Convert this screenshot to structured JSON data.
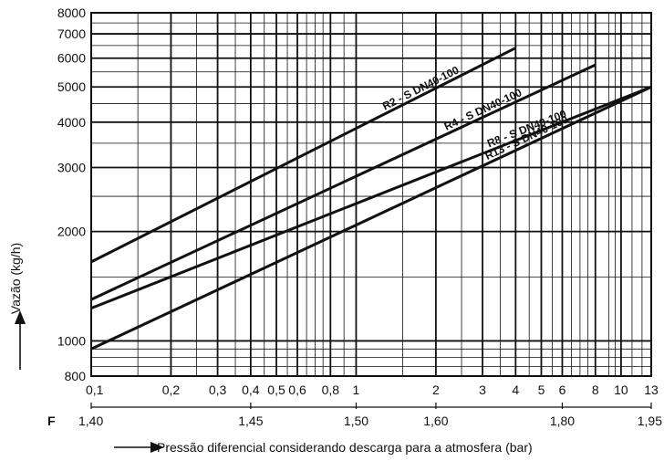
{
  "chart_data": {
    "type": "line",
    "x_scale": "log",
    "y_scale": "log",
    "xlim": [
      0.1,
      13
    ],
    "ylim": [
      800,
      8000
    ],
    "xlabel": "Pressão diferencial considerando descarga para a atmosfera (bar)",
    "ylabel": "Vazão (kg/h)",
    "grid": true,
    "x_major_ticks": [
      0.1,
      0.2,
      0.3,
      0.4,
      0.5,
      0.6,
      0.8,
      1,
      2,
      3,
      4,
      5,
      6,
      8,
      10,
      13
    ],
    "x_tick_labels": [
      "0,1",
      "0,2",
      "0,3",
      "0,4",
      "0,5",
      "0,6",
      "0,8",
      "1",
      "2",
      "3",
      "4",
      "5",
      "6",
      "8",
      "10",
      "13"
    ],
    "x_minor_grid": [
      0.15,
      0.25,
      0.35,
      0.45,
      0.55,
      0.65,
      0.7,
      0.75,
      0.9,
      1.5,
      2.5,
      3.5,
      4.5,
      5.5,
      6.5,
      7,
      7.5,
      9,
      9.5,
      11,
      12
    ],
    "y_major_ticks": [
      800,
      1000,
      2000,
      3000,
      4000,
      5000,
      6000,
      7000,
      8000
    ],
    "y_tick_labels": [
      "800",
      "1000",
      "2000",
      "3000",
      "4000",
      "5000",
      "6000",
      "7000",
      "8000"
    ],
    "y_minor_grid": [
      850,
      900,
      950,
      1500,
      2500,
      3500,
      4500,
      5500,
      6500,
      7500
    ],
    "f_axis": {
      "label": "F",
      "positions": [
        0.1,
        0.4,
        1,
        2,
        6,
        13
      ],
      "labels": [
        "1,40",
        "1,45",
        "1,50",
        "1,60",
        "1,80",
        "1,95"
      ]
    },
    "series": [
      {
        "name": "R2 - S DN40-100",
        "x": [
          0.1,
          4.0
        ],
        "y": [
          1650,
          6400
        ]
      },
      {
        "name": "R4 - S DN40-100",
        "x": [
          0.1,
          8.0
        ],
        "y": [
          1300,
          5750
        ]
      },
      {
        "name": "R8 - S DN40-100",
        "x": [
          0.1,
          13
        ],
        "y": [
          1230,
          5000
        ]
      },
      {
        "name": "R13 - S DN40-100",
        "x": [
          0.1,
          13
        ],
        "y": [
          950,
          5000
        ]
      }
    ]
  },
  "colors": {
    "grid": "#111111",
    "curve": "#111111",
    "background": "#ffffff"
  }
}
